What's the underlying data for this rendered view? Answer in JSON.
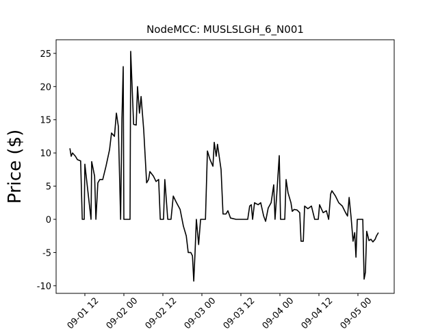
{
  "chart_data": {
    "type": "line",
    "title": "NodeMCC: MUSLSLGH_6_N001",
    "y_label": "Price ($)",
    "x": [
      7.4,
      7.8,
      8.2,
      9.1,
      9.7,
      10.7,
      11.2,
      11.8,
      12.0,
      13.9,
      14.1,
      15.0,
      15.4,
      16.0,
      16.6,
      17.5,
      18.5,
      19.6,
      20.2,
      21.1,
      21.7,
      22.3,
      23.0,
      23.4,
      23.8,
      24.0,
      25.9,
      26.1,
      27.0,
      27.8,
      28.2,
      28.8,
      29.3,
      30.1,
      31.0,
      31.6,
      32.0,
      33.1,
      33.9,
      34.7,
      35.2,
      36.2,
      36.6,
      37.5,
      38.5,
      39.2,
      40.2,
      41.3,
      42.3,
      43.2,
      43.8,
      44.6,
      45.1,
      45.5,
      45.9,
      46.3,
      47.0,
      47.6,
      49.1,
      49.7,
      50.5,
      51.4,
      51.8,
      52.4,
      52.8,
      53.9,
      54.5,
      55.4,
      56.0,
      56.8,
      58.5,
      61.3,
      62.1,
      62.7,
      63.2,
      63.6,
      64.2,
      65.3,
      66.1,
      67.0,
      67.6,
      68.4,
      69.3,
      70.1,
      70.5,
      71.0,
      71.8,
      72.2,
      73.5,
      73.9,
      74.5,
      75.4,
      75.8,
      76.4,
      77.3,
      78.1,
      78.5,
      79.2,
      79.6,
      80.6,
      81.7,
      82.7,
      83.8,
      84.2,
      85.3,
      86.3,
      87.0,
      87.6,
      88.0,
      89.1,
      90.1,
      91.2,
      92.2,
      92.8,
      93.3,
      93.9,
      94.5,
      95.0,
      95.4,
      95.8,
      97.5,
      97.9,
      98.3,
      98.7,
      99.4,
      100.0,
      100.6,
      101.3,
      101.7,
      102.3
    ],
    "series": [
      {
        "color": "#000000",
        "values": [
          10.7,
          9.5,
          10,
          9.5,
          9,
          8.8,
          0,
          0,
          8.3,
          0,
          8.7,
          6.5,
          0,
          5.5,
          6,
          6,
          8,
          10.5,
          13,
          12.5,
          16,
          14,
          0,
          15,
          23,
          0,
          0,
          25.3,
          14.3,
          14.2,
          20,
          16,
          18.5,
          13.5,
          5.5,
          6,
          7.2,
          6.5,
          5.7,
          6,
          0,
          0,
          6,
          0,
          0,
          3.5,
          2.5,
          1.5,
          -1,
          -2.5,
          -5,
          -5,
          -5.5,
          -9.3,
          -5,
          0,
          -3.8,
          0,
          0,
          10.3,
          9,
          8,
          11.6,
          9.5,
          11.3,
          7.5,
          0.8,
          0.8,
          1.3,
          0.2,
          0,
          0,
          0,
          2,
          2.2,
          0,
          2.5,
          2.2,
          2.5,
          0.5,
          -0.3,
          1.7,
          2.5,
          5.2,
          0,
          3.5,
          9.6,
          0,
          0,
          6,
          4,
          2.5,
          1.2,
          1.5,
          1.4,
          1,
          -3.3,
          -3.3,
          2,
          1.6,
          2,
          0,
          0,
          2.2,
          1,
          1.3,
          0,
          3.8,
          4.3,
          3.5,
          2.5,
          2,
          1,
          0.5,
          3.3,
          0.3,
          -3.3,
          -2,
          -5.7,
          0,
          0,
          -9,
          -8,
          -1.8,
          -3.2,
          -3,
          -3.4,
          -3,
          -2.5,
          -2
        ]
      }
    ],
    "xlim": [
      3.16,
      107.16
    ],
    "xticks": [
      {
        "value": 12,
        "label": "09-01 12"
      },
      {
        "value": 24,
        "label": "09-02 00"
      },
      {
        "value": 36,
        "label": "09-02 12"
      },
      {
        "value": 48,
        "label": "09-03 00"
      },
      {
        "value": 60,
        "label": "09-03 12"
      },
      {
        "value": 72,
        "label": "09-04 00"
      },
      {
        "value": 84,
        "label": "09-04 12"
      },
      {
        "value": 96,
        "label": "09-05 00"
      }
    ],
    "ylim": [
      -11.15,
      27.05
    ],
    "yticks": [
      -10,
      -5,
      0,
      5,
      10,
      15,
      20,
      25
    ],
    "grid": false
  }
}
